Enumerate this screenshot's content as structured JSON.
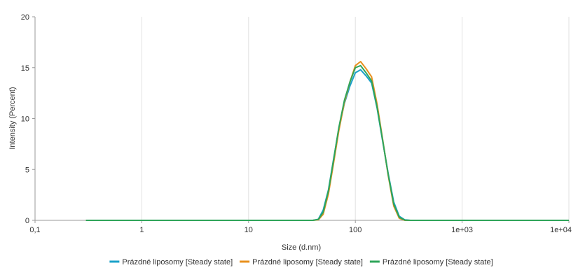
{
  "chart_data": {
    "type": "line",
    "title": "",
    "xlabel": "Size (d.nm)",
    "ylabel": "Intensity (Percent)",
    "x_scale": "log",
    "xlim": [
      0.1,
      10000
    ],
    "ylim": [
      0,
      20
    ],
    "x_ticks": [
      "0,1",
      "1",
      "10",
      "100",
      "1e+03",
      "1e+04"
    ],
    "y_ticks": [
      "0",
      "5",
      "10",
      "15",
      "20"
    ],
    "grid": "vertical",
    "legend": "bottom",
    "series": [
      {
        "name": "Prázdné liposomy [Steady state]",
        "color": "#1ba1c9",
        "x": [
          0.3,
          40,
          45,
          50,
          56,
          62,
          70,
          79,
          89,
          100,
          112,
          126,
          142,
          160,
          180,
          203,
          229,
          258,
          291,
          328,
          370,
          10000
        ],
        "y": [
          0,
          0,
          0.1,
          1.0,
          3.0,
          5.8,
          9.0,
          11.5,
          13.2,
          14.5,
          14.8,
          14.2,
          13.5,
          11.0,
          7.8,
          4.6,
          1.8,
          0.4,
          0.05,
          0,
          0,
          0
        ]
      },
      {
        "name": "Prázdné liposomy [Steady state]",
        "color": "#e8901e",
        "x": [
          0.3,
          40,
          45,
          50,
          56,
          62,
          70,
          79,
          89,
          100,
          112,
          126,
          142,
          160,
          180,
          203,
          229,
          258,
          291,
          328,
          370,
          10000
        ],
        "y": [
          0,
          0,
          0.05,
          0.6,
          2.6,
          5.4,
          8.8,
          11.6,
          13.6,
          15.2,
          15.6,
          14.9,
          14.1,
          11.4,
          8.0,
          4.4,
          1.4,
          0.2,
          0,
          0,
          0,
          0
        ]
      },
      {
        "name": "Prázdné liposomy [Steady state]",
        "color": "#2fa55a",
        "x": [
          0.3,
          40,
          45,
          50,
          56,
          62,
          70,
          79,
          89,
          100,
          112,
          126,
          142,
          160,
          180,
          203,
          229,
          258,
          291,
          328,
          370,
          10000
        ],
        "y": [
          0,
          0,
          0.08,
          0.8,
          2.9,
          5.7,
          9.1,
          11.8,
          13.6,
          15.0,
          15.2,
          14.5,
          13.7,
          11.1,
          7.9,
          4.5,
          1.6,
          0.3,
          0.02,
          0,
          0,
          0
        ]
      }
    ]
  }
}
